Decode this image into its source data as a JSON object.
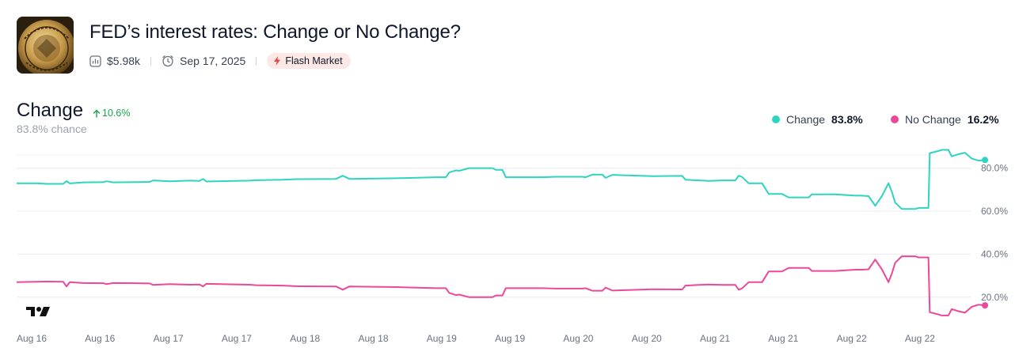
{
  "market": {
    "title": "FED’s interest rates: Change or No Change?",
    "volume": "$5.98k",
    "end_date": "Sep 17, 2025",
    "badge": "Flash Market",
    "logo_icon": "federal-reserve-seal-icon"
  },
  "selected_outcome": {
    "name": "Change",
    "delta": "10.6%",
    "chance_value": "83.8",
    "chance_suffix": "% chance"
  },
  "legend": [
    {
      "name": "Change",
      "value": "83.8%",
      "color": "#2dd4bf"
    },
    {
      "name": "No Change",
      "value": "16.2%",
      "color": "#ec4899"
    }
  ],
  "watermark": "TV",
  "chart_data": {
    "type": "line",
    "x_tick_labels": [
      "Aug 16",
      "Aug 16",
      "Aug 17",
      "Aug 17",
      "Aug 18",
      "Aug 18",
      "Aug 19",
      "Aug 19",
      "Aug 20",
      "Aug 20",
      "Aug 21",
      "Aug 21",
      "Aug 22",
      "Aug 22"
    ],
    "y_tick_labels": [
      "80.0%",
      "60.0%",
      "40.0%",
      "20.0%"
    ],
    "y_ticks": [
      80,
      60,
      40,
      20
    ],
    "ylim": [
      10,
      92
    ],
    "x_range": [
      0,
      14
    ],
    "grid": true,
    "legend_position": "top-right",
    "series": [
      {
        "name": "Change",
        "color": "#2dd4bf",
        "points": [
          [
            0,
            73
          ],
          [
            0.3,
            73
          ],
          [
            0.45,
            72.7
          ],
          [
            0.7,
            72.7
          ],
          [
            0.75,
            74
          ],
          [
            0.8,
            72.9
          ],
          [
            1.0,
            73.4
          ],
          [
            1.3,
            73.5
          ],
          [
            1.35,
            73.9
          ],
          [
            1.45,
            73.4
          ],
          [
            1.8,
            73.5
          ],
          [
            2.0,
            73.6
          ],
          [
            2.05,
            74.3
          ],
          [
            2.3,
            73.9
          ],
          [
            2.6,
            74.2
          ],
          [
            2.75,
            74.1
          ],
          [
            2.8,
            75
          ],
          [
            2.85,
            73.8
          ],
          [
            3.5,
            74.2
          ],
          [
            3.6,
            74.4
          ],
          [
            4.0,
            74.6
          ],
          [
            4.2,
            74.9
          ],
          [
            4.8,
            75
          ],
          [
            4.9,
            76.5
          ],
          [
            5.0,
            75
          ],
          [
            5.7,
            75.3
          ],
          [
            6.3,
            75.8
          ],
          [
            6.45,
            75.8
          ],
          [
            6.5,
            78
          ],
          [
            6.6,
            79
          ],
          [
            6.65,
            78.8
          ],
          [
            6.8,
            80
          ],
          [
            7.15,
            80
          ],
          [
            7.2,
            79.2
          ],
          [
            7.3,
            79.2
          ],
          [
            7.35,
            75.8
          ],
          [
            7.9,
            75.8
          ],
          [
            8.1,
            76
          ],
          [
            8.5,
            76
          ],
          [
            8.55,
            75.8
          ],
          [
            8.65,
            77
          ],
          [
            8.8,
            77
          ],
          [
            8.85,
            75.5
          ],
          [
            8.95,
            76.9
          ],
          [
            9.55,
            76.3
          ],
          [
            10.0,
            76.4
          ],
          [
            10.05,
            74.6
          ],
          [
            10.25,
            74.3
          ],
          [
            10.4,
            74.1
          ],
          [
            10.6,
            74.3
          ],
          [
            10.8,
            74.3
          ],
          [
            10.85,
            76.5
          ],
          [
            10.9,
            75.9
          ],
          [
            11.0,
            73
          ],
          [
            11.2,
            73
          ],
          [
            11.3,
            68
          ],
          [
            11.5,
            68
          ],
          [
            11.6,
            66.4
          ],
          [
            11.9,
            66.4
          ],
          [
            11.95,
            67.8
          ],
          [
            12.3,
            67.8
          ],
          [
            12.6,
            67.2
          ],
          [
            12.7,
            67.2
          ],
          [
            12.8,
            67
          ],
          [
            12.9,
            62.5
          ],
          [
            13.0,
            67
          ],
          [
            13.1,
            73
          ],
          [
            13.15,
            69
          ],
          [
            13.2,
            64
          ],
          [
            13.3,
            61
          ],
          [
            13.5,
            61
          ],
          [
            13.55,
            61.5
          ],
          [
            13.7,
            61.5
          ],
          [
            13.72,
            87
          ],
          [
            13.85,
            88
          ],
          [
            13.9,
            88.5
          ],
          [
            14.0,
            88.5
          ],
          [
            14.05,
            85.5
          ],
          [
            14.15,
            86.5
          ],
          [
            14.25,
            87.2
          ],
          [
            14.35,
            84.5
          ],
          [
            14.45,
            83.5
          ],
          [
            14.55,
            83.8
          ]
        ]
      },
      {
        "name": "No Change",
        "color": "#ec4899",
        "points": [
          [
            0,
            27
          ],
          [
            0.3,
            27.2
          ],
          [
            0.45,
            27.3
          ],
          [
            0.7,
            27.2
          ],
          [
            0.75,
            25
          ],
          [
            0.8,
            27
          ],
          [
            1.0,
            26.6
          ],
          [
            1.3,
            26.5
          ],
          [
            1.35,
            26.1
          ],
          [
            1.45,
            26.6
          ],
          [
            1.8,
            26.5
          ],
          [
            2.0,
            26.4
          ],
          [
            2.05,
            25.7
          ],
          [
            2.3,
            26.1
          ],
          [
            2.6,
            25.8
          ],
          [
            2.75,
            25.9
          ],
          [
            2.8,
            25
          ],
          [
            2.85,
            26.2
          ],
          [
            3.5,
            25.8
          ],
          [
            3.6,
            25.6
          ],
          [
            4.0,
            25.4
          ],
          [
            4.2,
            25.1
          ],
          [
            4.8,
            25
          ],
          [
            4.9,
            23.5
          ],
          [
            5.0,
            25
          ],
          [
            5.7,
            24.7
          ],
          [
            6.3,
            24.2
          ],
          [
            6.45,
            24.2
          ],
          [
            6.5,
            22
          ],
          [
            6.6,
            21
          ],
          [
            6.65,
            21.2
          ],
          [
            6.8,
            20
          ],
          [
            7.15,
            20
          ],
          [
            7.2,
            20.8
          ],
          [
            7.3,
            20.8
          ],
          [
            7.35,
            24.2
          ],
          [
            7.9,
            24.2
          ],
          [
            8.1,
            24
          ],
          [
            8.5,
            24
          ],
          [
            8.55,
            24.2
          ],
          [
            8.65,
            23
          ],
          [
            8.8,
            23
          ],
          [
            8.85,
            24.5
          ],
          [
            8.95,
            23.1
          ],
          [
            9.55,
            23.7
          ],
          [
            10.0,
            23.6
          ],
          [
            10.05,
            25.4
          ],
          [
            10.25,
            25.7
          ],
          [
            10.4,
            25.9
          ],
          [
            10.6,
            25.7
          ],
          [
            10.8,
            25.7
          ],
          [
            10.85,
            23.5
          ],
          [
            10.9,
            24.1
          ],
          [
            11.0,
            27
          ],
          [
            11.2,
            27
          ],
          [
            11.3,
            32
          ],
          [
            11.5,
            32
          ],
          [
            11.6,
            33.6
          ],
          [
            11.9,
            33.6
          ],
          [
            11.95,
            32.2
          ],
          [
            12.3,
            32.2
          ],
          [
            12.6,
            32.8
          ],
          [
            12.7,
            32.8
          ],
          [
            12.8,
            33
          ],
          [
            12.9,
            37.5
          ],
          [
            13.0,
            33
          ],
          [
            13.1,
            27
          ],
          [
            13.15,
            31
          ],
          [
            13.2,
            36
          ],
          [
            13.3,
            39
          ],
          [
            13.5,
            39
          ],
          [
            13.55,
            38.5
          ],
          [
            13.7,
            38.5
          ],
          [
            13.72,
            13
          ],
          [
            13.85,
            12
          ],
          [
            13.9,
            11.5
          ],
          [
            14.0,
            11.5
          ],
          [
            14.05,
            14.5
          ],
          [
            14.15,
            13.5
          ],
          [
            14.25,
            12.8
          ],
          [
            14.35,
            15.5
          ],
          [
            14.45,
            16.5
          ],
          [
            14.55,
            16.2
          ]
        ]
      }
    ]
  }
}
